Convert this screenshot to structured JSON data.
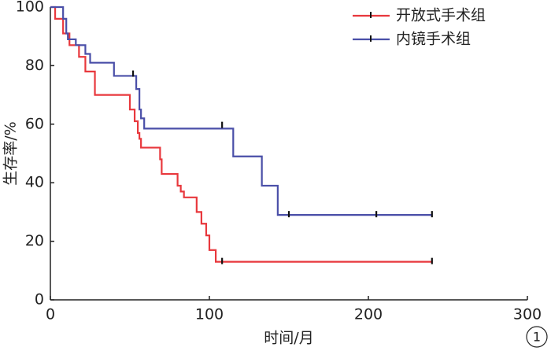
{
  "chart_data": {
    "type": "step",
    "xlabel": "时间/月",
    "ylabel": "生存率/%",
    "annotation": "1",
    "xlim": [
      0,
      300
    ],
    "xticks": [
      0,
      100,
      200,
      300
    ],
    "ylim": [
      0,
      100
    ],
    "yticks": [
      0,
      20,
      40,
      60,
      80,
      100
    ],
    "grid": false,
    "legend": "upper right",
    "series": [
      {
        "name": "开放式手术组",
        "color": "#e8383d",
        "x": [
          0,
          3,
          8,
          12,
          18,
          22,
          28,
          50,
          53,
          55,
          56,
          57,
          69,
          70,
          80,
          82,
          84,
          92,
          95,
          98,
          100,
          104,
          240
        ],
        "values": [
          100,
          96,
          91,
          87,
          83,
          78,
          70,
          65,
          61,
          57,
          55,
          52,
          48,
          43,
          39,
          37,
          35,
          30,
          26,
          22,
          17,
          13,
          13
        ],
        "censor_x": [
          108,
          240
        ],
        "censor_values": [
          13,
          13
        ]
      },
      {
        "name": "内镜手术组",
        "color": "#4a4fa8",
        "x": [
          0,
          8,
          10,
          11,
          16,
          22,
          25,
          40,
          54,
          56,
          57,
          59,
          115,
          133,
          143,
          240
        ],
        "values": [
          100,
          96,
          91,
          89,
          87,
          84,
          81,
          76.5,
          72,
          65,
          62,
          58.5,
          49,
          39,
          29,
          29
        ],
        "censor_x": [
          52,
          108,
          150,
          205,
          240
        ],
        "censor_values": [
          77,
          59.5,
          29,
          29,
          29
        ]
      }
    ]
  }
}
